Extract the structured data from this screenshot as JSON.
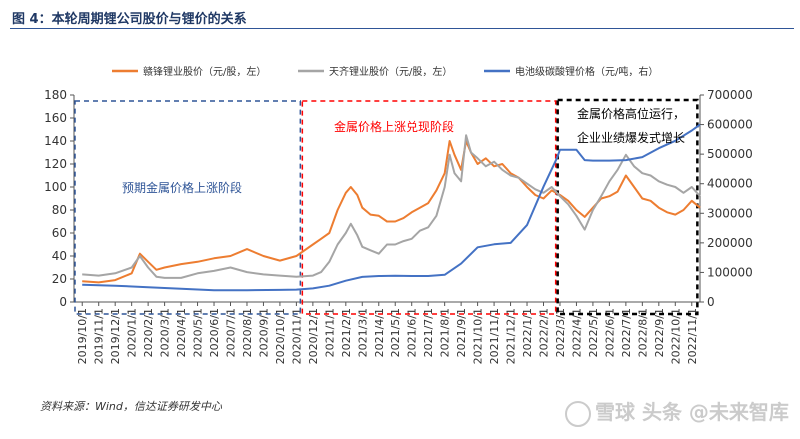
{
  "figure_title": "图 4：本轮周期锂公司股价与锂价的关系",
  "source_text": "资料来源：Wind，信达证券研发中心",
  "watermark_text": "雪球  头条 @未来智库",
  "chart_data": {
    "type": "line",
    "title": "",
    "legend_position": "top",
    "grid": false,
    "y_left": {
      "range": [
        0,
        180
      ],
      "ticks": [
        "0",
        "20",
        "40",
        "60",
        "80",
        "100",
        "120",
        "140",
        "160",
        "180"
      ]
    },
    "y_right": {
      "range": [
        0,
        700000
      ],
      "ticks": [
        "0",
        "100000",
        "200000",
        "300000",
        "400000",
        "500000",
        "600000",
        "700000"
      ]
    },
    "x_ticks": [
      "2019/10/1",
      "2019/11/1",
      "2019/12/1",
      "2020/1/1",
      "2020/2/1",
      "2020/3/1",
      "2020/4/1",
      "2020/5/1",
      "2020/6/1",
      "2020/7/1",
      "2020/8/1",
      "2020/9/1",
      "2020/10/1",
      "2020/11/1",
      "2020/12/1",
      "2021/1/1",
      "2021/2/1",
      "2021/3/1",
      "2021/4/1",
      "2021/5/1",
      "2021/6/1",
      "2021/7/1",
      "2021/8/1",
      "2021/9/1",
      "2021/10/1",
      "2021/11/1",
      "2021/12/1",
      "2022/1/1",
      "2022/2/1",
      "2022/3/1",
      "2022/4/1",
      "2022/5/1",
      "2022/6/1",
      "2022/7/1",
      "2022/8/1",
      "2022/9/1",
      "2022/10/1",
      "2022/11/1"
    ],
    "series": [
      {
        "name": "赣锋锂业股价（元/股，左）",
        "axis": "left",
        "color": "#ed7d31",
        "points": [
          [
            0,
            18
          ],
          [
            1,
            17
          ],
          [
            2,
            19
          ],
          [
            3,
            25
          ],
          [
            3.5,
            42
          ],
          [
            4,
            35
          ],
          [
            4.5,
            28
          ],
          [
            5,
            30
          ],
          [
            6,
            33
          ],
          [
            7,
            35
          ],
          [
            8,
            38
          ],
          [
            9,
            40
          ],
          [
            10,
            46
          ],
          [
            11,
            40
          ],
          [
            12,
            36
          ],
          [
            13,
            40
          ],
          [
            14,
            50
          ],
          [
            14.5,
            55
          ],
          [
            15,
            60
          ],
          [
            15.5,
            80
          ],
          [
            16,
            95
          ],
          [
            16.3,
            100
          ],
          [
            16.7,
            93
          ],
          [
            17,
            82
          ],
          [
            17.5,
            76
          ],
          [
            18,
            75
          ],
          [
            18.5,
            70
          ],
          [
            19,
            70
          ],
          [
            19.5,
            73
          ],
          [
            20,
            78
          ],
          [
            20.5,
            82
          ],
          [
            21,
            86
          ],
          [
            21.5,
            97
          ],
          [
            22,
            112
          ],
          [
            22.3,
            140
          ],
          [
            22.6,
            128
          ],
          [
            23,
            115
          ],
          [
            23.3,
            140
          ],
          [
            23.6,
            130
          ],
          [
            24,
            120
          ],
          [
            24.5,
            125
          ],
          [
            25,
            118
          ],
          [
            25.5,
            120
          ],
          [
            26,
            112
          ],
          [
            26.5,
            108
          ],
          [
            27,
            100
          ],
          [
            27.5,
            93
          ],
          [
            28,
            90
          ],
          [
            28.5,
            97
          ],
          [
            29,
            93
          ],
          [
            29.5,
            88
          ],
          [
            30,
            80
          ],
          [
            30.5,
            74
          ],
          [
            31,
            82
          ],
          [
            31.5,
            90
          ],
          [
            32,
            92
          ],
          [
            32.5,
            96
          ],
          [
            33,
            110
          ],
          [
            33.5,
            100
          ],
          [
            34,
            90
          ],
          [
            34.5,
            88
          ],
          [
            35,
            82
          ],
          [
            35.5,
            78
          ],
          [
            36,
            76
          ],
          [
            36.5,
            80
          ],
          [
            37,
            88
          ],
          [
            37.5,
            82
          ]
        ]
      },
      {
        "name": "天齐锂业股价（元/股，左）",
        "axis": "left",
        "color": "#a5a5a5",
        "points": [
          [
            0,
            24
          ],
          [
            1,
            23
          ],
          [
            2,
            25
          ],
          [
            3,
            30
          ],
          [
            3.5,
            40
          ],
          [
            4,
            30
          ],
          [
            4.5,
            22
          ],
          [
            5,
            21
          ],
          [
            6,
            21
          ],
          [
            7,
            25
          ],
          [
            8,
            27
          ],
          [
            9,
            30
          ],
          [
            10,
            26
          ],
          [
            11,
            24
          ],
          [
            12,
            23
          ],
          [
            13,
            22
          ],
          [
            14,
            23
          ],
          [
            14.5,
            26
          ],
          [
            15,
            35
          ],
          [
            15.5,
            50
          ],
          [
            16,
            60
          ],
          [
            16.3,
            68
          ],
          [
            16.7,
            58
          ],
          [
            17,
            48
          ],
          [
            17.5,
            45
          ],
          [
            18,
            42
          ],
          [
            18.5,
            50
          ],
          [
            19,
            50
          ],
          [
            19.5,
            53
          ],
          [
            20,
            55
          ],
          [
            20.5,
            62
          ],
          [
            21,
            65
          ],
          [
            21.5,
            75
          ],
          [
            22,
            100
          ],
          [
            22.3,
            128
          ],
          [
            22.6,
            112
          ],
          [
            23,
            105
          ],
          [
            23.3,
            145
          ],
          [
            23.6,
            130
          ],
          [
            24,
            125
          ],
          [
            24.5,
            118
          ],
          [
            25,
            122
          ],
          [
            25.5,
            115
          ],
          [
            26,
            110
          ],
          [
            26.5,
            108
          ],
          [
            27,
            103
          ],
          [
            27.5,
            98
          ],
          [
            28,
            95
          ],
          [
            28.5,
            100
          ],
          [
            29,
            92
          ],
          [
            29.5,
            85
          ],
          [
            30,
            75
          ],
          [
            30.5,
            63
          ],
          [
            31,
            80
          ],
          [
            31.5,
            92
          ],
          [
            32,
            105
          ],
          [
            32.5,
            115
          ],
          [
            33,
            128
          ],
          [
            33.5,
            118
          ],
          [
            34,
            112
          ],
          [
            34.5,
            110
          ],
          [
            35,
            105
          ],
          [
            35.5,
            102
          ],
          [
            36,
            100
          ],
          [
            36.5,
            95
          ],
          [
            37,
            100
          ],
          [
            37.5,
            92
          ]
        ]
      },
      {
        "name": "电池级碳酸锂价格（元/吨，右）",
        "axis": "right",
        "color": "#4472c4",
        "points": [
          [
            0,
            58000
          ],
          [
            2,
            55000
          ],
          [
            4,
            50000
          ],
          [
            6,
            45000
          ],
          [
            8,
            40000
          ],
          [
            10,
            40000
          ],
          [
            12,
            41000
          ],
          [
            13,
            42000
          ],
          [
            14,
            46000
          ],
          [
            15,
            55000
          ],
          [
            16,
            72000
          ],
          [
            17,
            85000
          ],
          [
            18,
            88000
          ],
          [
            19,
            89000
          ],
          [
            20,
            88000
          ],
          [
            21,
            88000
          ],
          [
            22,
            92000
          ],
          [
            23,
            130000
          ],
          [
            24,
            185000
          ],
          [
            25,
            195000
          ],
          [
            26,
            200000
          ],
          [
            27,
            260000
          ],
          [
            28,
            390000
          ],
          [
            28.8,
            485000
          ],
          [
            29,
            515000
          ],
          [
            30,
            515000
          ],
          [
            30.5,
            480000
          ],
          [
            31,
            478000
          ],
          [
            32,
            478000
          ],
          [
            33,
            480000
          ],
          [
            34,
            490000
          ],
          [
            35,
            520000
          ],
          [
            36,
            545000
          ],
          [
            37,
            580000
          ],
          [
            37.5,
            600000
          ]
        ]
      }
    ],
    "phases": [
      {
        "label": "预期金属价格上涨阶段",
        "from": 0,
        "to": 13.8,
        "color": "#2f5597"
      },
      {
        "label": "金属价格上涨兑现阶段",
        "from": 13.8,
        "to": 29.3,
        "color": "#ff0000"
      },
      {
        "label_line1": "金属价格高位运行，",
        "label_line2": "企业业绩爆发式增长",
        "from": 29.3,
        "to": 37.9,
        "color": "#000000"
      }
    ]
  }
}
